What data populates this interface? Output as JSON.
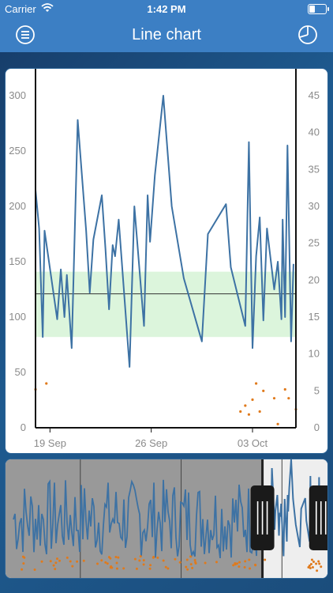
{
  "status_bar": {
    "carrier": "Carrier",
    "time": "1:42 PM",
    "battery_level": 0.35
  },
  "nav_bar": {
    "title": "Line chart",
    "left_icon": "menu-icon",
    "right_icon": "chart-time-icon"
  },
  "colors": {
    "bar": "#3c7fc4",
    "series": "#3d72a4",
    "dots": "#e07a1c",
    "band": "#dcf5dc",
    "shade": "#999999"
  },
  "chart_data": {
    "type": "line",
    "title": "",
    "xlabel": "",
    "ylabel": "",
    "x_range": [
      "2023-09-18",
      "2023-10-06"
    ],
    "x_ticks": [
      {
        "date": "2023-09-19",
        "label": "19 Sep"
      },
      {
        "date": "2023-09-26",
        "label": "26 Sep"
      },
      {
        "date": "2023-10-03",
        "label": "03 Oct"
      }
    ],
    "y_left": {
      "min": 0,
      "max": 300,
      "ticks": [
        0,
        50,
        100,
        150,
        200,
        250,
        300
      ]
    },
    "y_right": {
      "min": 0,
      "max": 45,
      "ticks": [
        0,
        5,
        10,
        15,
        20,
        25,
        30,
        35,
        40,
        45
      ]
    },
    "reference_line": 121,
    "band": [
      82,
      141
    ],
    "series": [
      {
        "axis": "left",
        "points": [
          [
            "2023-09-18T00:00",
            215
          ],
          [
            "2023-09-18T06:00",
            180
          ],
          [
            "2023-09-18T12:00",
            82
          ],
          [
            "2023-09-18T15:00",
            178
          ],
          [
            "2023-09-19T12:00",
            98
          ],
          [
            "2023-09-19T18:00",
            143
          ],
          [
            "2023-09-20T00:00",
            100
          ],
          [
            "2023-09-20T04:00",
            138
          ],
          [
            "2023-09-20T12:00",
            72
          ],
          [
            "2023-09-20T22:00",
            278
          ],
          [
            "2023-09-21T12:00",
            178
          ],
          [
            "2023-09-21T18:00",
            122
          ],
          [
            "2023-09-22T00:00",
            170
          ],
          [
            "2023-09-22T14:00",
            210
          ],
          [
            "2023-09-22T20:00",
            162
          ],
          [
            "2023-09-23T02:00",
            107
          ],
          [
            "2023-09-23T08:00",
            165
          ],
          [
            "2023-09-23T12:00",
            155
          ],
          [
            "2023-09-23T18:00",
            188
          ],
          [
            "2023-09-24T12:00",
            55
          ],
          [
            "2023-09-24T20:00",
            200
          ],
          [
            "2023-09-25T12:00",
            92
          ],
          [
            "2023-09-25T18:00",
            210
          ],
          [
            "2023-09-25T22:00",
            168
          ],
          [
            "2023-09-26T06:00",
            228
          ],
          [
            "2023-09-26T20:00",
            300
          ],
          [
            "2023-09-27T10:00",
            200
          ],
          [
            "2023-09-28T06:00",
            135
          ],
          [
            "2023-09-29T12:00",
            78
          ],
          [
            "2023-09-29T22:00",
            175
          ],
          [
            "2023-10-01T04:00",
            202
          ],
          [
            "2023-10-01T12:00",
            145
          ],
          [
            "2023-10-02T12:00",
            92
          ],
          [
            "2023-10-02T18:00",
            258
          ],
          [
            "2023-10-03T00:00",
            72
          ],
          [
            "2023-10-03T06:00",
            155
          ],
          [
            "2023-10-03T12:00",
            190
          ],
          [
            "2023-10-03T18:00",
            97
          ],
          [
            "2023-10-04T00:00",
            180
          ],
          [
            "2023-10-04T12:00",
            125
          ],
          [
            "2023-10-04T18:00",
            150
          ],
          [
            "2023-10-05T00:00",
            98
          ],
          [
            "2023-10-05T02:00",
            188
          ],
          [
            "2023-10-05T06:00",
            100
          ],
          [
            "2023-10-05T10:00",
            255
          ],
          [
            "2023-10-05T16:00",
            78
          ],
          [
            "2023-10-05T20:00",
            148
          ]
        ]
      },
      {
        "axis": "right",
        "type": "scatter",
        "points": [
          [
            "2023-09-18T00:00",
            5.2
          ],
          [
            "2023-09-18T18:00",
            6.0
          ],
          [
            "2023-10-02T04:00",
            2.2
          ],
          [
            "2023-10-02T12:00",
            3.0
          ],
          [
            "2023-10-02T18:00",
            1.8
          ],
          [
            "2023-10-03T00:00",
            3.8
          ],
          [
            "2023-10-03T06:00",
            6.0
          ],
          [
            "2023-10-03T12:00",
            2.2
          ],
          [
            "2023-10-03T18:00",
            5.0
          ],
          [
            "2023-10-04T12:00",
            4.0
          ],
          [
            "2023-10-04T18:00",
            0.5
          ],
          [
            "2023-10-05T06:00",
            5.2
          ],
          [
            "2023-10-05T12:00",
            4.0
          ],
          [
            "2023-10-06T00:00",
            2.5
          ]
        ]
      }
    ]
  },
  "navigator": {
    "x_range": [
      "2023-07-01",
      "2023-10-08"
    ],
    "window": [
      "2023-09-18",
      "2023-10-06"
    ],
    "divider_dates": [
      "2023-07-24",
      "2023-08-24",
      "2023-09-24"
    ]
  }
}
